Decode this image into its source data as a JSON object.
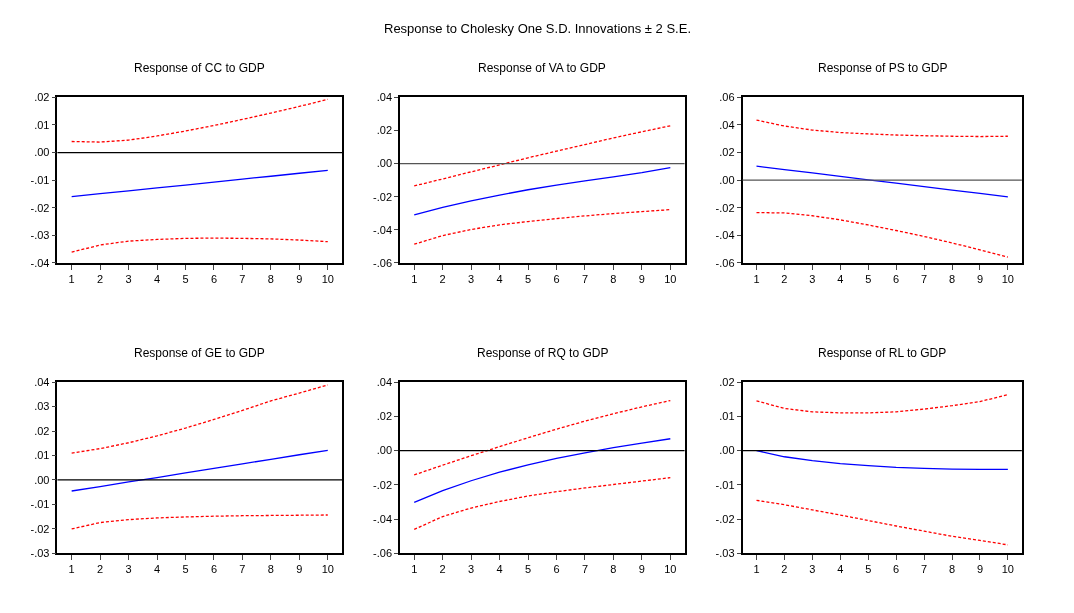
{
  "chart_data": [
    {
      "type": "line",
      "annotations": [
        "Response to Cholesky One S.D. Innovations ± 2 S.E."
      ],
      "title": "Response of CC to GDP",
      "categories": [
        "1",
        "2",
        "3",
        "4",
        "5",
        "6",
        "7",
        "8",
        "9",
        "10"
      ],
      "ylim": [
        -0.04,
        0.02
      ],
      "yticks": [
        {
          "value": -0.04,
          "label": "-.04"
        },
        {
          "value": -0.03,
          "label": "-.03"
        },
        {
          "value": -0.02,
          "label": "-.02"
        },
        {
          "value": -0.01,
          "label": "-.01"
        },
        {
          "value": 0,
          "label": ".00"
        },
        {
          "value": 0.01,
          "label": ".01"
        },
        {
          "value": 0.02,
          "label": ".02"
        }
      ],
      "ref_lines": [
        {
          "axis": "y",
          "value": 0,
          "color": "#000000"
        }
      ],
      "series": [
        {
          "color": "#0000ff",
          "line_style": "solid",
          "values": [
            -0.016,
            -0.0149,
            -0.0139,
            -0.0128,
            -0.0118,
            -0.0107,
            -0.0096,
            -0.0086,
            -0.0075,
            -0.0065
          ]
        },
        {
          "color": "#ff0000",
          "line_style": "dashed",
          "values": [
            0.004,
            0.0038,
            0.0045,
            0.006,
            0.0078,
            0.0098,
            0.012,
            0.0143,
            0.0167,
            0.0193
          ]
        },
        {
          "color": "#ff0000",
          "line_style": "dashed",
          "values": [
            -0.0361,
            -0.0335,
            -0.0321,
            -0.0315,
            -0.0311,
            -0.031,
            -0.0311,
            -0.0313,
            -0.0317,
            -0.0323
          ]
        }
      ]
    },
    {
      "type": "line",
      "title": "Response of VA to GDP",
      "categories": [
        "1",
        "2",
        "3",
        "4",
        "5",
        "6",
        "7",
        "8",
        "9",
        "10"
      ],
      "ylim": [
        -0.06,
        0.04
      ],
      "yticks": [
        {
          "value": -0.06,
          "label": "-.06"
        },
        {
          "value": -0.04,
          "label": "-.04"
        },
        {
          "value": -0.02,
          "label": "-.02"
        },
        {
          "value": 0,
          "label": ".00"
        },
        {
          "value": 0.02,
          "label": ".02"
        },
        {
          "value": 0.04,
          "label": ".04"
        }
      ],
      "ref_lines": [
        {
          "axis": "y",
          "value": 0,
          "color": "#555555"
        }
      ],
      "series": [
        {
          "color": "#0000ff",
          "line_style": "solid",
          "values": [
            -0.031,
            -0.0265,
            -0.0225,
            -0.019,
            -0.0158,
            -0.013,
            -0.0105,
            -0.008,
            -0.0055,
            -0.0025
          ]
        },
        {
          "color": "#ff0000",
          "line_style": "dashed",
          "values": [
            -0.0135,
            -0.0093,
            -0.005,
            -0.0008,
            0.0035,
            0.0075,
            0.0115,
            0.0155,
            0.0192,
            0.0228
          ]
        },
        {
          "color": "#ff0000",
          "line_style": "dashed",
          "values": [
            -0.0487,
            -0.0435,
            -0.0398,
            -0.037,
            -0.035,
            -0.0332,
            -0.0316,
            -0.0302,
            -0.029,
            -0.0278
          ]
        }
      ]
    },
    {
      "type": "line",
      "title": "Response of PS to GDP",
      "categories": [
        "1",
        "2",
        "3",
        "4",
        "5",
        "6",
        "7",
        "8",
        "9",
        "10"
      ],
      "ylim": [
        -0.06,
        0.06
      ],
      "yticks": [
        {
          "value": -0.06,
          "label": "-.06"
        },
        {
          "value": -0.04,
          "label": "-.04"
        },
        {
          "value": -0.02,
          "label": "-.02"
        },
        {
          "value": 0,
          "label": ".00"
        },
        {
          "value": 0.02,
          "label": ".02"
        },
        {
          "value": 0.04,
          "label": ".04"
        },
        {
          "value": 0.06,
          "label": ".06"
        }
      ],
      "ref_lines": [
        {
          "axis": "y",
          "value": 0,
          "color": "#555555"
        }
      ],
      "series": [
        {
          "color": "#0000ff",
          "line_style": "solid",
          "values": [
            0.0101,
            0.0076,
            0.0052,
            0.0027,
            0.0002,
            -0.0022,
            -0.0047,
            -0.0072,
            -0.0096,
            -0.0121
          ]
        },
        {
          "color": "#ff0000",
          "line_style": "dashed",
          "values": [
            0.0435,
            0.0392,
            0.0363,
            0.0345,
            0.0335,
            0.0327,
            0.0322,
            0.0318,
            0.0316,
            0.0318
          ]
        },
        {
          "color": "#ff0000",
          "line_style": "dashed",
          "values": [
            -0.0235,
            -0.0238,
            -0.0258,
            -0.0288,
            -0.0325,
            -0.0365,
            -0.0408,
            -0.0455,
            -0.0505,
            -0.0558
          ]
        }
      ]
    },
    {
      "type": "line",
      "title": "Response of GE to GDP",
      "categories": [
        "1",
        "2",
        "3",
        "4",
        "5",
        "6",
        "7",
        "8",
        "9",
        "10"
      ],
      "ylim": [
        -0.03,
        0.04
      ],
      "yticks": [
        {
          "value": -0.03,
          "label": "-.03"
        },
        {
          "value": -0.02,
          "label": "-.02"
        },
        {
          "value": -0.01,
          "label": "-.01"
        },
        {
          "value": 0,
          "label": ".00"
        },
        {
          "value": 0.01,
          "label": ".01"
        },
        {
          "value": 0.02,
          "label": ".02"
        },
        {
          "value": 0.03,
          "label": ".03"
        },
        {
          "value": 0.04,
          "label": ".04"
        }
      ],
      "ref_lines": [
        {
          "axis": "y",
          "value": 0,
          "color": "#000000"
        }
      ],
      "series": [
        {
          "color": "#0000ff",
          "line_style": "solid",
          "values": [
            -0.0045,
            -0.0027,
            -0.0008,
            0.001,
            0.0029,
            0.0047,
            0.0066,
            0.0084,
            0.0103,
            0.0121
          ]
        },
        {
          "color": "#ff0000",
          "line_style": "dashed",
          "values": [
            0.011,
            0.0128,
            0.0152,
            0.018,
            0.0212,
            0.0247,
            0.0284,
            0.0323,
            0.0355,
            0.0388
          ]
        },
        {
          "color": "#ff0000",
          "line_style": "dashed",
          "values": [
            -0.02,
            -0.0174,
            -0.0162,
            -0.0155,
            -0.0151,
            -0.0148,
            -0.0146,
            -0.0145,
            -0.0144,
            -0.0143
          ]
        }
      ]
    },
    {
      "type": "line",
      "title": "Response of RQ to GDP",
      "categories": [
        "1",
        "2",
        "3",
        "4",
        "5",
        "6",
        "7",
        "8",
        "9",
        "10"
      ],
      "ylim": [
        -0.06,
        0.04
      ],
      "yticks": [
        {
          "value": -0.06,
          "label": "-.06"
        },
        {
          "value": -0.04,
          "label": "-.04"
        },
        {
          "value": -0.02,
          "label": "-.02"
        },
        {
          "value": 0,
          "label": ".00"
        },
        {
          "value": 0.02,
          "label": ".02"
        },
        {
          "value": 0.04,
          "label": ".04"
        }
      ],
      "ref_lines": [
        {
          "axis": "y",
          "value": 0,
          "color": "#000000"
        }
      ],
      "series": [
        {
          "color": "#0000ff",
          "line_style": "solid",
          "values": [
            -0.0302,
            -0.0234,
            -0.0176,
            -0.0126,
            -0.0083,
            -0.0046,
            -0.0013,
            0.0017,
            0.0044,
            0.0069
          ]
        },
        {
          "color": "#ff0000",
          "line_style": "dashed",
          "values": [
            -0.0142,
            -0.0085,
            -0.003,
            0.0023,
            0.0075,
            0.0125,
            0.0172,
            0.0215,
            0.0255,
            0.0292
          ]
        },
        {
          "color": "#ff0000",
          "line_style": "dashed",
          "values": [
            -0.046,
            -0.0385,
            -0.0335,
            -0.0297,
            -0.0265,
            -0.024,
            -0.0218,
            -0.0198,
            -0.0178,
            -0.0158
          ]
        }
      ]
    },
    {
      "type": "line",
      "title": "Response of RL to GDP",
      "categories": [
        "1",
        "2",
        "3",
        "4",
        "5",
        "6",
        "7",
        "8",
        "9",
        "10"
      ],
      "ylim": [
        -0.03,
        0.02
      ],
      "yticks": [
        {
          "value": -0.03,
          "label": "-.03"
        },
        {
          "value": -0.02,
          "label": "-.02"
        },
        {
          "value": -0.01,
          "label": "-.01"
        },
        {
          "value": 0,
          "label": ".00"
        },
        {
          "value": 0.01,
          "label": ".01"
        },
        {
          "value": 0.02,
          "label": ".02"
        }
      ],
      "ref_lines": [
        {
          "axis": "y",
          "value": 0,
          "color": "#000000"
        }
      ],
      "series": [
        {
          "color": "#0000ff",
          "line_style": "solid",
          "values": [
            0.0,
            -0.0018,
            -0.0029,
            -0.0038,
            -0.0044,
            -0.0049,
            -0.0052,
            -0.0054,
            -0.0055,
            -0.0055
          ]
        },
        {
          "color": "#ff0000",
          "line_style": "dashed",
          "values": [
            0.0145,
            0.0123,
            0.0113,
            0.011,
            0.011,
            0.0113,
            0.0121,
            0.0131,
            0.0143,
            0.0163
          ]
        },
        {
          "color": "#ff0000",
          "line_style": "dashed",
          "values": [
            -0.0145,
            -0.0158,
            -0.0173,
            -0.0188,
            -0.0204,
            -0.022,
            -0.0235,
            -0.025,
            -0.0262,
            -0.0275
          ]
        }
      ]
    }
  ]
}
